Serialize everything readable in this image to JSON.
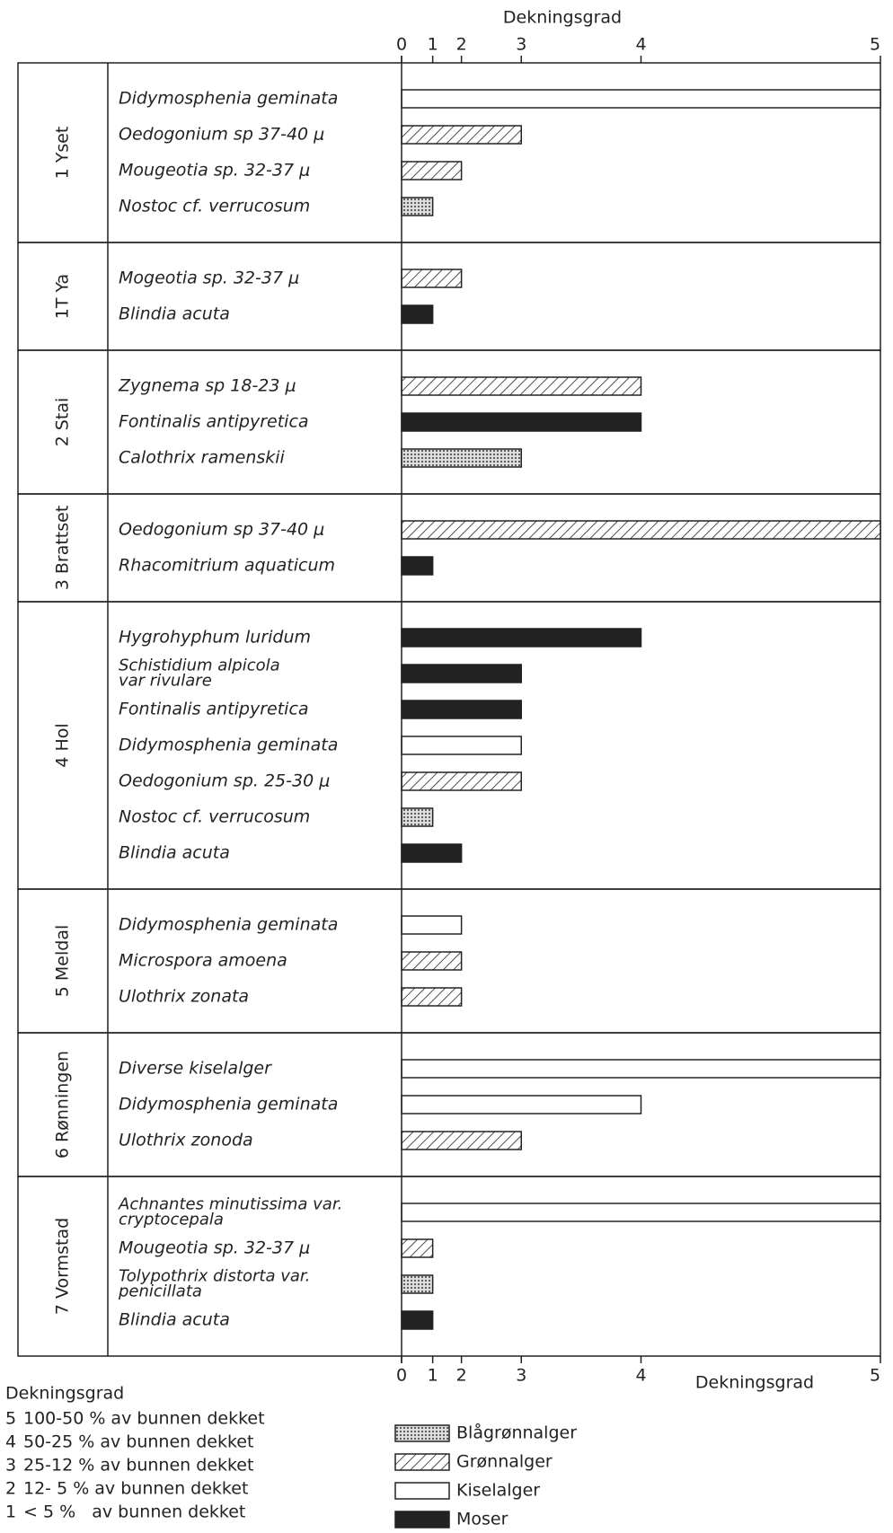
{
  "chart_data": {
    "type": "bar",
    "orientation": "horizontal",
    "x_label": "Dekningsgrad",
    "xlim": [
      0,
      100
    ],
    "xticks": [
      {
        "value": 0,
        "label": "0"
      },
      {
        "value": 6.5,
        "label": "1"
      },
      {
        "value": 12.5,
        "label": "2"
      },
      {
        "value": 25,
        "label": "3"
      },
      {
        "value": 50,
        "label": "4"
      },
      {
        "value": 100,
        "label": "5"
      }
    ],
    "legend": [
      {
        "name": "Blågrønnalger",
        "fill": "dots"
      },
      {
        "name": "Grønnalger",
        "fill": "hatch"
      },
      {
        "name": "Kiselalger",
        "fill": "white"
      },
      {
        "name": "Moser",
        "fill": "black"
      }
    ],
    "groups": [
      {
        "name": "1 Yset",
        "rows": [
          {
            "label": "Didymosphenia geminata",
            "fill": "white",
            "value": 100
          },
          {
            "label": "Oedogonium sp 37-40 μ",
            "fill": "hatch",
            "value": 25
          },
          {
            "label": "Mougeotia sp. 32-37 μ",
            "fill": "hatch",
            "value": 12.5
          },
          {
            "label": "Nostoc cf. verrucosum",
            "fill": "dots",
            "value": 6.5
          }
        ]
      },
      {
        "name": "1T Ya",
        "rows": [
          {
            "label": "Mogeotia sp. 32-37 μ",
            "fill": "hatch",
            "value": 12.5
          },
          {
            "label": "Blindia acuta",
            "fill": "black",
            "value": 6.5
          }
        ]
      },
      {
        "name": "2 Stai",
        "rows": [
          {
            "label": "Zygnema sp 18-23 μ",
            "fill": "hatch",
            "value": 50
          },
          {
            "label": "Fontinalis antipyretica",
            "fill": "black",
            "value": 50
          },
          {
            "label": "Calothrix ramenskii",
            "fill": "dots",
            "value": 25
          }
        ]
      },
      {
        "name": "3 Brattset",
        "rows": [
          {
            "label": "Oedogonium sp 37-40 μ",
            "fill": "hatch",
            "value": 100
          },
          {
            "label": "Rhacomitrium aquaticum",
            "fill": "black",
            "value": 6.5
          }
        ]
      },
      {
        "name": "4 Hol",
        "rows": [
          {
            "label": "Hygrohyphum luridum",
            "fill": "black",
            "value": 50
          },
          {
            "label": [
              "Schistidium alpicola",
              "var rivulare"
            ],
            "fill": "black",
            "value": 25
          },
          {
            "label": "Fontinalis antipyretica",
            "fill": "black",
            "value": 25
          },
          {
            "label": "Didymosphenia geminata",
            "fill": "white",
            "value": 25
          },
          {
            "label": "Oedogonium sp. 25-30 μ",
            "fill": "hatch",
            "value": 25
          },
          {
            "label": "Nostoc cf. verrucosum",
            "fill": "dots",
            "value": 6.5
          },
          {
            "label": "Blindia acuta",
            "fill": "black",
            "value": 12.5
          }
        ]
      },
      {
        "name": "5 Meldal",
        "rows": [
          {
            "label": "Didymosphenia geminata",
            "fill": "white",
            "value": 12.5
          },
          {
            "label": "Microspora amoena",
            "fill": "hatch",
            "value": 12.5
          },
          {
            "label": "Ulothrix zonata",
            "fill": "hatch",
            "value": 12.5
          }
        ]
      },
      {
        "name": "6 Rønningen",
        "rows": [
          {
            "label": "Diverse kiselalger",
            "fill": "white",
            "value": 100
          },
          {
            "label": "Didymosphenia geminata",
            "fill": "white",
            "value": 50
          },
          {
            "label": "Ulothrix zonoda",
            "fill": "hatch",
            "value": 25
          }
        ]
      },
      {
        "name": "7 Vormstad",
        "rows": [
          {
            "label": [
              "Achnantes minutissima var.",
              "cryptocepala"
            ],
            "fill": "white",
            "value": 100
          },
          {
            "label": "Mougeotia sp. 32-37 μ",
            "fill": "hatch",
            "value": 6.5
          },
          {
            "label": [
              "Tolypothrix distorta var.",
              "penicillata"
            ],
            "fill": "dots",
            "value": 6.5
          },
          {
            "label": "Blindia acuta",
            "fill": "black",
            "value": 6.5
          }
        ]
      }
    ],
    "class_legend": {
      "title": "Dekningsgrad",
      "rows": [
        {
          "class": "5",
          "text": "100-50 % av bunnen dekket"
        },
        {
          "class": "4",
          "text": "50-25 % av bunnen dekket"
        },
        {
          "class": "3",
          "text": "25-12 % av bunnen dekket"
        },
        {
          "class": "2",
          "text": "12- 5 % av bunnen dekket"
        },
        {
          "class": "1",
          "text": "< 5 %   av bunnen dekket"
        }
      ]
    }
  }
}
